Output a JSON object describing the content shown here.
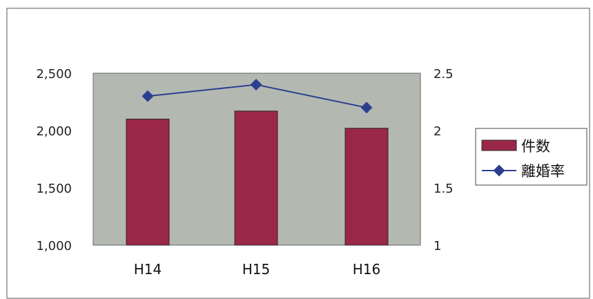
{
  "chart_data": {
    "type": "bar",
    "categories": [
      "H14",
      "H15",
      "H16"
    ],
    "series": [
      {
        "name": "件数",
        "type": "bar",
        "axis": "left",
        "values": [
          2100,
          2170,
          2020
        ],
        "color": "#9b2748"
      },
      {
        "name": "離婚率",
        "type": "line",
        "axis": "right",
        "values": [
          2.3,
          2.4,
          2.2
        ],
        "color": "#2c3f8f"
      }
    ],
    "ylim": [
      1000,
      2500
    ],
    "y2lim": [
      1,
      2.5
    ],
    "y_ticks": [
      "1,000",
      "1,500",
      "2,000",
      "2,500"
    ],
    "y2_ticks": [
      "1",
      "1.5",
      "2",
      "2.5"
    ],
    "plot_background": "#b3b9b1",
    "grid": false,
    "legend_position": "right"
  }
}
